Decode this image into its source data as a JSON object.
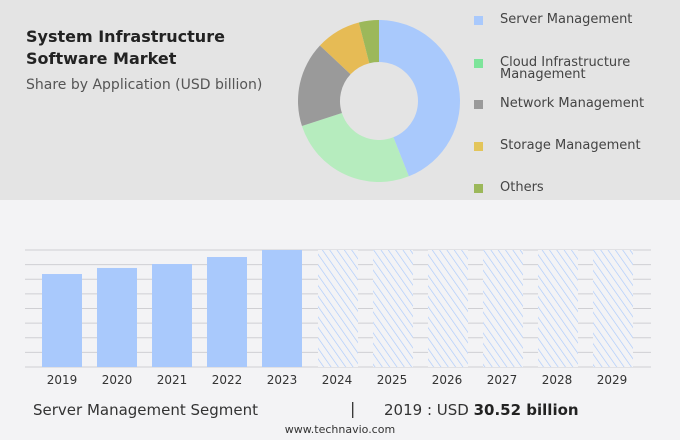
{
  "title": "System Infrastructure Software Market",
  "subtitle": "Share by Application (USD billion)",
  "chart_data": [
    {
      "type": "pie",
      "variant": "donut",
      "categories": [
        "Server Management",
        "Cloud Infrastructure Management",
        "Network Management",
        "Storage Management",
        "Others"
      ],
      "values": [
        44,
        26,
        17,
        9,
        4
      ],
      "colors": [
        "#a9c9fc",
        "#b6ecbe",
        "#9a9a9a",
        "#e6bb55",
        "#9cb85a"
      ],
      "legend_colors": [
        "#a9c9fc",
        "#7de49a",
        "#9a9a9a",
        "#e3c55a",
        "#9cb85a"
      ],
      "legend": "right"
    },
    {
      "type": "bar",
      "categories": [
        "2019",
        "2020",
        "2021",
        "2022",
        "2023",
        "2024",
        "2025",
        "2026",
        "2027",
        "2028",
        "2029"
      ],
      "values": [
        30.52,
        32.5,
        33.8,
        36.1,
        38.4,
        null,
        null,
        null,
        null,
        null,
        null
      ],
      "forecast_style": "hatched",
      "color": "#a9c9fc",
      "grid": true
    }
  ],
  "footer": {
    "segment": "Server Management Segment",
    "separator": "|",
    "year_label": "2019 : USD",
    "value": "30.52 billion",
    "site": "www.technavio.com"
  }
}
